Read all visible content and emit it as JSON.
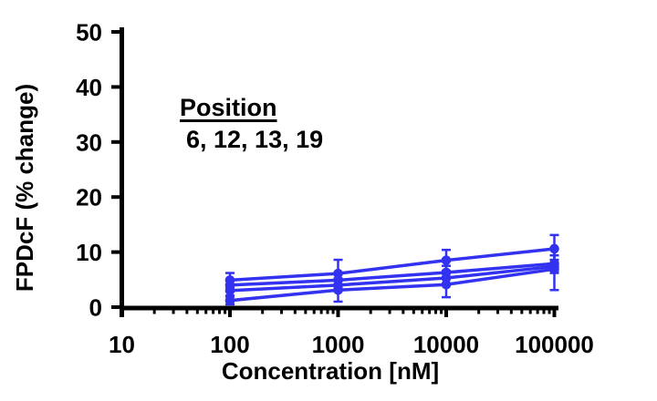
{
  "chart_data": {
    "type": "line",
    "x": [
      100,
      1000,
      10000,
      100000
    ],
    "xscale": "log",
    "xlabel": "Concentration [nM]",
    "ylabel": "FPDcF (% change)",
    "xlim": [
      10,
      100000
    ],
    "ylim": [
      0,
      50
    ],
    "xticks": [
      10,
      100,
      1000,
      10000,
      100000
    ],
    "xtick_labels": [
      "10",
      "100",
      "1000",
      "10000",
      "100000"
    ],
    "yticks": [
      0,
      10,
      20,
      30,
      40,
      50
    ],
    "minor_ticks": true,
    "grid": false,
    "legend_position": "none",
    "series_color": "#3232F0",
    "axis_color": "#000000",
    "marker": "circle",
    "error_bars": true,
    "annotation": {
      "line1": "Position",
      "line2": "6, 12, 13, 19"
    },
    "series": [
      {
        "name": "Position 6",
        "values": [
          4.9,
          6.1,
          8.5,
          10.6
        ],
        "errors": [
          1.3,
          2.5,
          1.9,
          2.5
        ]
      },
      {
        "name": "Position 12",
        "values": [
          4.0,
          4.9,
          6.3,
          7.9
        ],
        "errors": [
          1.0,
          1.2,
          1.2,
          1.5
        ]
      },
      {
        "name": "Position 13",
        "values": [
          3.0,
          4.0,
          5.3,
          7.4
        ],
        "errors": [
          0.9,
          1.0,
          1.0,
          1.2
        ]
      },
      {
        "name": "Position 19",
        "values": [
          1.2,
          3.1,
          4.1,
          6.9
        ],
        "errors": [
          0.7,
          2.1,
          2.3,
          3.8
        ]
      }
    ]
  }
}
